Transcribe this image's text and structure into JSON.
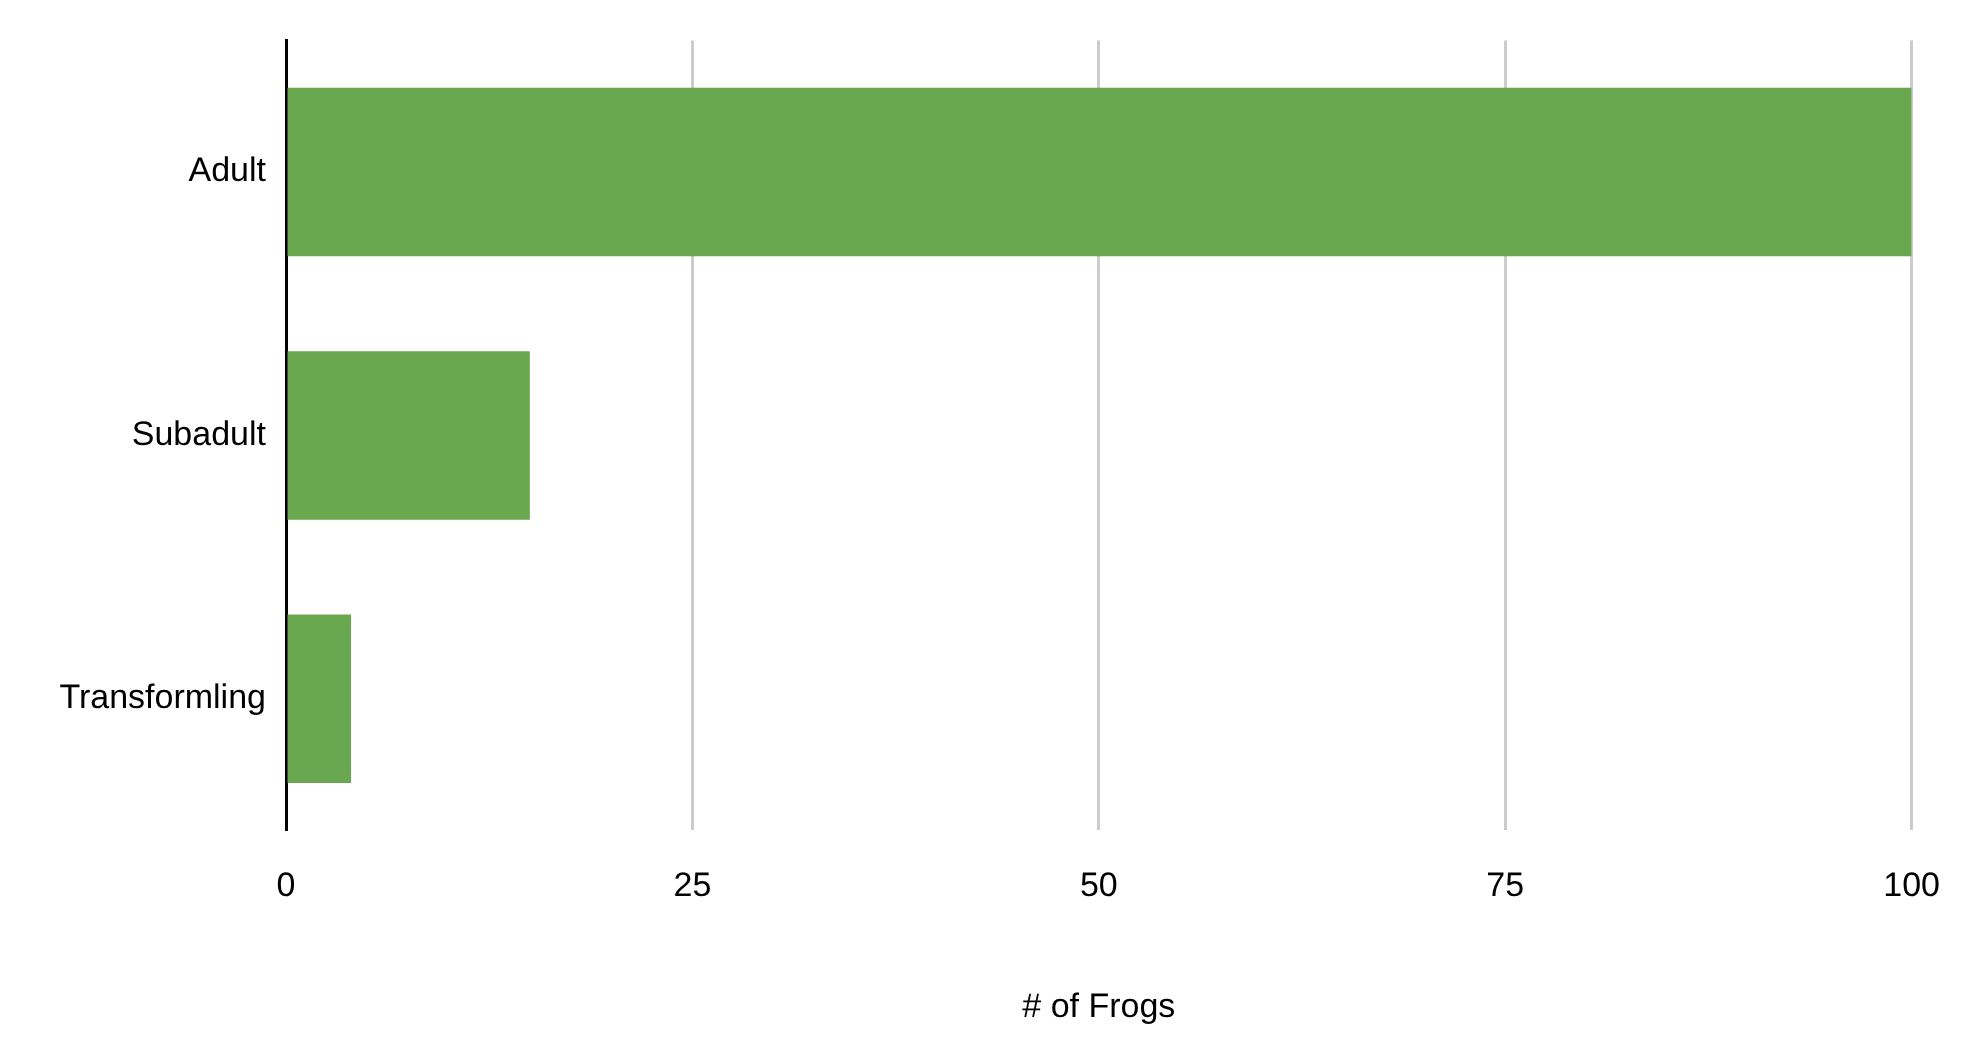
{
  "chart_data": {
    "type": "bar",
    "orientation": "horizontal",
    "xlabel": "# of Frogs",
    "categories": [
      "Adult",
      "Subadult",
      "Transformling"
    ],
    "values": [
      100,
      15,
      4
    ],
    "color": "#6aa84f",
    "xlim": [
      0,
      100
    ],
    "xticks": [
      0,
      25,
      50,
      75,
      100
    ],
    "grid": "x",
    "legend": false
  }
}
